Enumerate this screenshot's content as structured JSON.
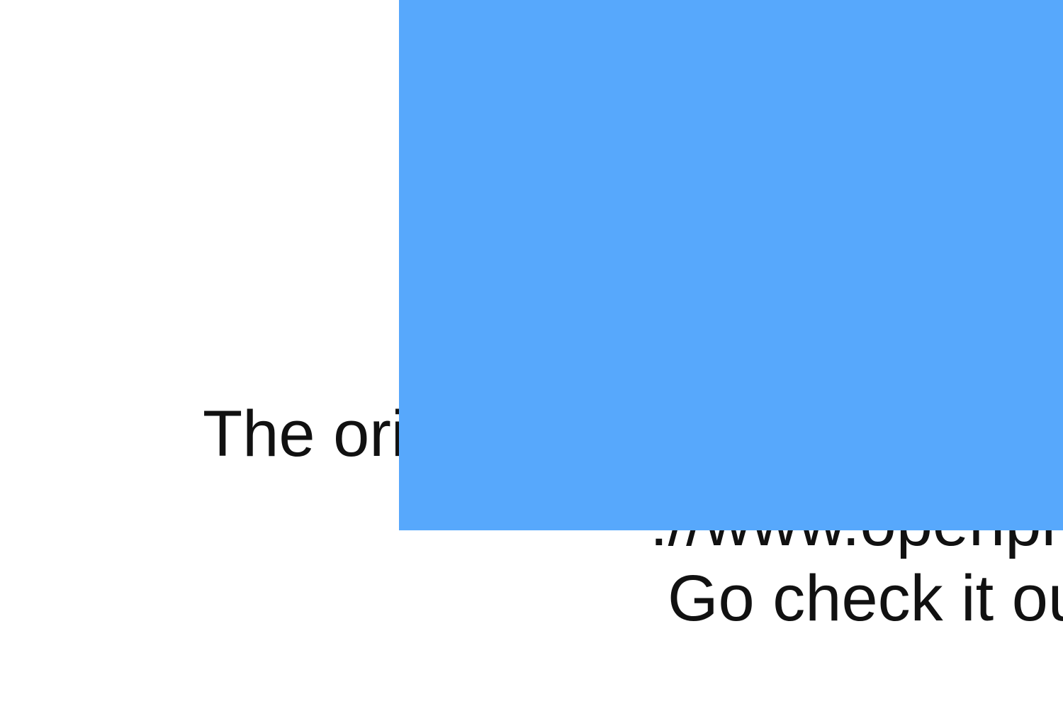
{
  "lines": [
    "The ori",
    "://www.openpr",
    "Go check it ou"
  ],
  "overlay": {
    "color": "#57a8fc"
  }
}
